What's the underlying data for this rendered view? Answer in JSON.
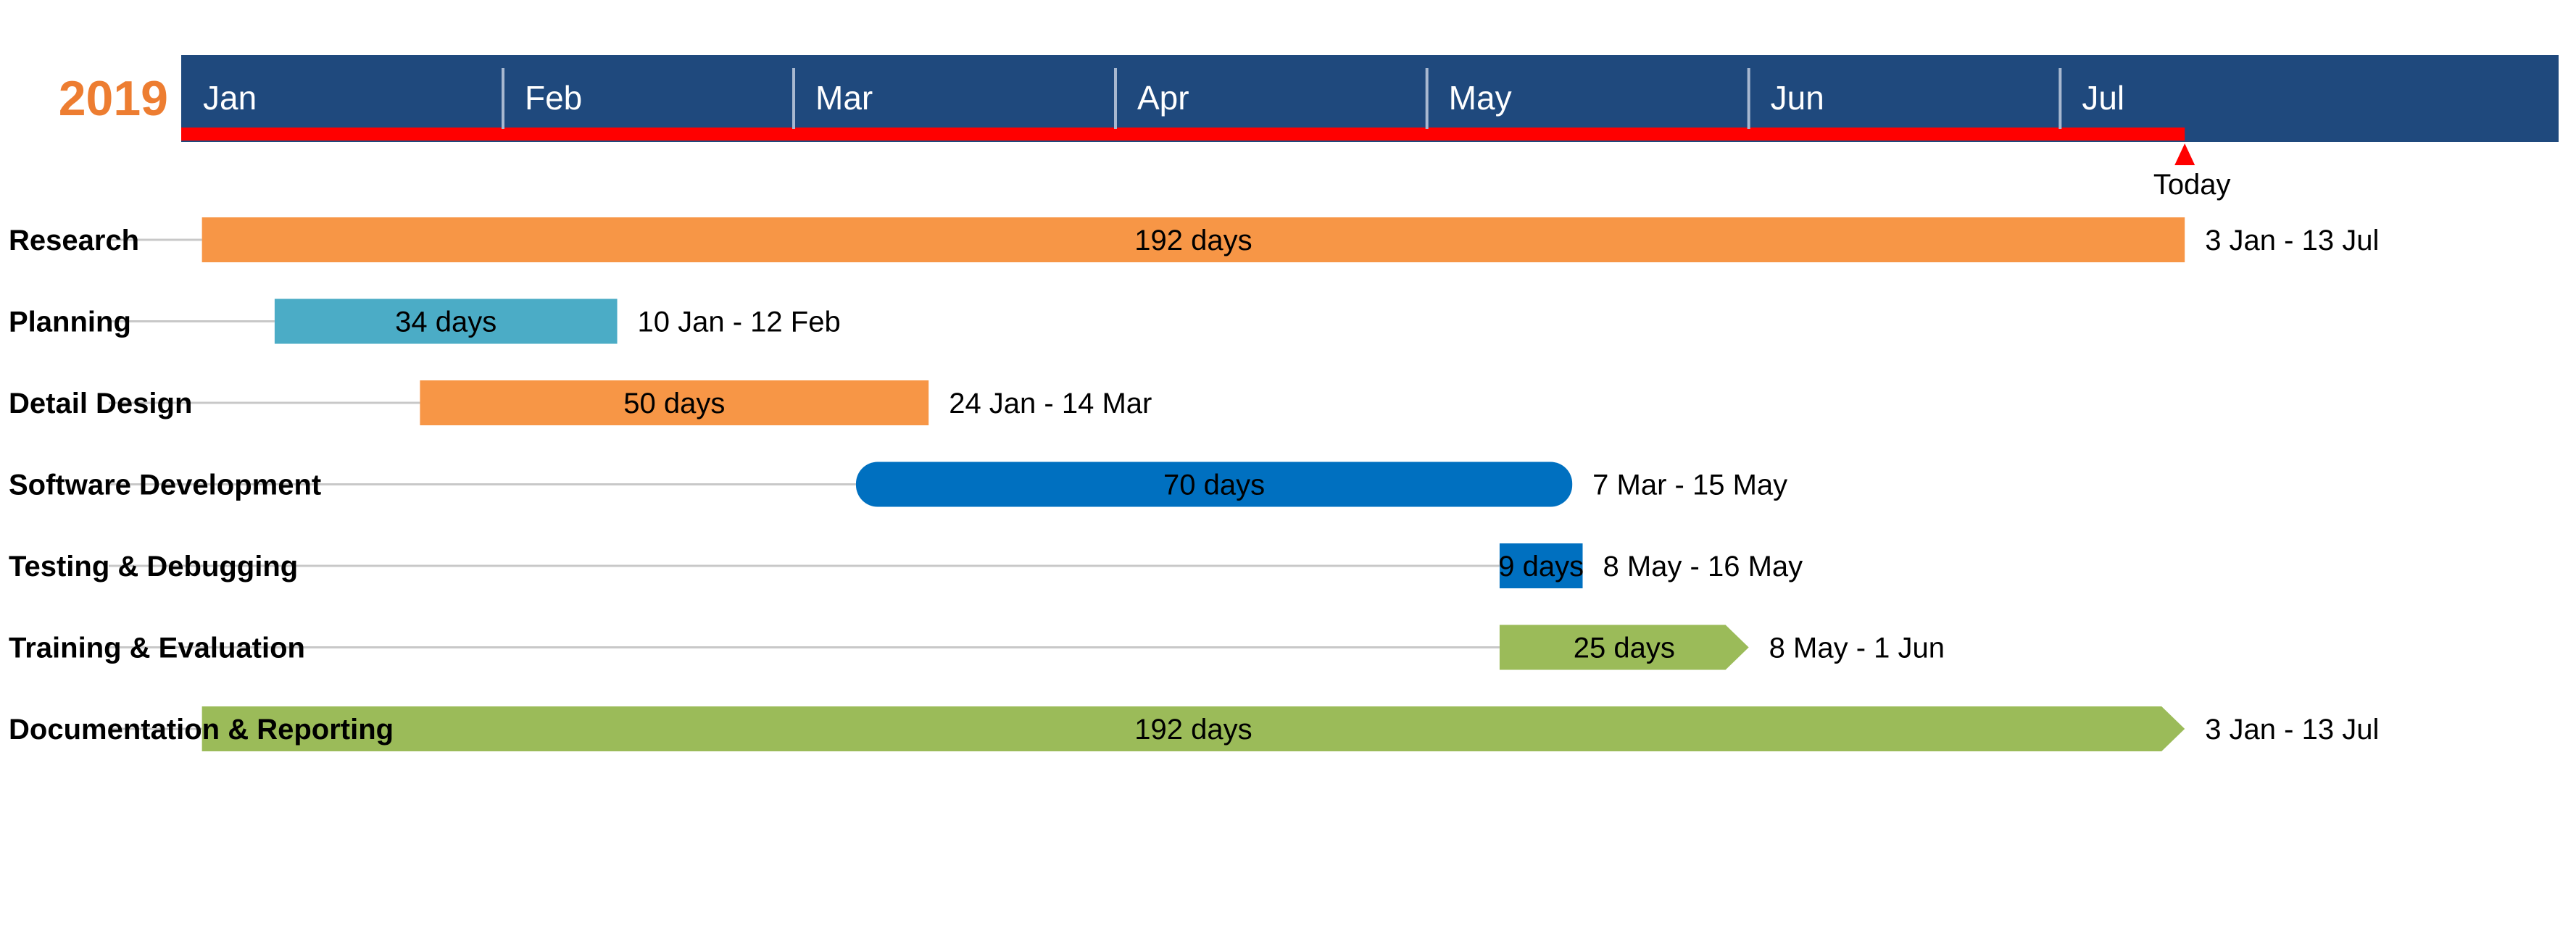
{
  "year_label": "2019",
  "colors": {
    "header_bg": "#1F497D",
    "header_divider": "#A8B8D0",
    "today_bar": "#FF0000",
    "year_text": "#ED7D31",
    "month_text": "#FFFFFF",
    "task_text": "#000000",
    "guide_line": "#C8C8C8"
  },
  "chart_data": {
    "type": "gantt",
    "year": 2019,
    "axis": {
      "start": "2019-01-01",
      "end": "2019-07-31",
      "months": [
        "Jan",
        "Feb",
        "Mar",
        "Apr",
        "May",
        "Jun",
        "Jul"
      ]
    },
    "today": {
      "label": "Today",
      "date": "2019-07-13"
    },
    "tasks": [
      {
        "name": "Research",
        "start": "2019-01-03",
        "end": "2019-07-13",
        "duration_label": "192 days",
        "date_label": "3 Jan - 13 Jul",
        "color": "#F79646",
        "shape": "rect"
      },
      {
        "name": "Planning",
        "start": "2019-01-10",
        "end": "2019-02-12",
        "duration_label": "34 days",
        "date_label": "10 Jan - 12 Feb",
        "color": "#4BACC6",
        "shape": "rect"
      },
      {
        "name": "Detail Design",
        "start": "2019-01-24",
        "end": "2019-03-14",
        "duration_label": "50 days",
        "date_label": "24 Jan - 14 Mar",
        "color": "#F79646",
        "shape": "rect"
      },
      {
        "name": "Software Development",
        "start": "2019-03-07",
        "end": "2019-05-15",
        "duration_label": "70 days",
        "date_label": "7 Mar - 15 May",
        "color": "#0070C0",
        "shape": "rounded"
      },
      {
        "name": "Testing & Debugging",
        "start": "2019-05-08",
        "end": "2019-05-16",
        "duration_label": "9 days",
        "date_label": "8 May - 16 May",
        "color": "#0070C0",
        "shape": "rect"
      },
      {
        "name": "Training & Evaluation",
        "start": "2019-05-08",
        "end": "2019-06-01",
        "duration_label": "25 days",
        "date_label": "8 May - 1 Jun",
        "color": "#9BBB59",
        "shape": "arrow"
      },
      {
        "name": "Documentation & Reporting",
        "start": "2019-01-03",
        "end": "2019-07-13",
        "duration_label": "192 days",
        "date_label": "3 Jan - 13 Jul",
        "color": "#9BBB59",
        "shape": "arrow"
      }
    ]
  }
}
